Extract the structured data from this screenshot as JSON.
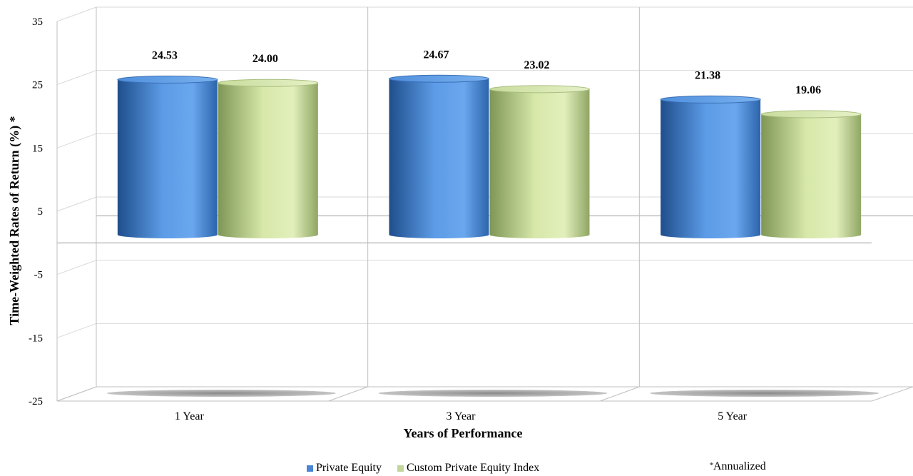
{
  "chart_data": {
    "type": "bar",
    "categories": [
      "1 Year",
      "3 Year",
      "5 Year"
    ],
    "series": [
      {
        "name": "Private Equity",
        "values": [
          24.53,
          24.67,
          21.38
        ],
        "color": "#4a86d4"
      },
      {
        "name": "Custom Private Equity Index",
        "values": [
          24.0,
          23.02,
          19.06
        ],
        "color": "#c2d69b"
      }
    ],
    "data_labels": [
      [
        "24.53",
        "24.00"
      ],
      [
        "24.67",
        "23.02"
      ],
      [
        "21.38",
        "19.06"
      ]
    ],
    "ylabel": "Time-Weighted Rates of Return (%) *",
    "xlabel": "Years of Performance",
    "yticks": [
      "35",
      "25",
      "15",
      "5",
      "-5",
      "-15",
      "-25"
    ],
    "ylim": [
      -25,
      35
    ],
    "grid": true,
    "style": "3d-cylinder",
    "legend_position": "bottom"
  },
  "footnote": {
    "star": "*",
    "text": "Annualized"
  }
}
